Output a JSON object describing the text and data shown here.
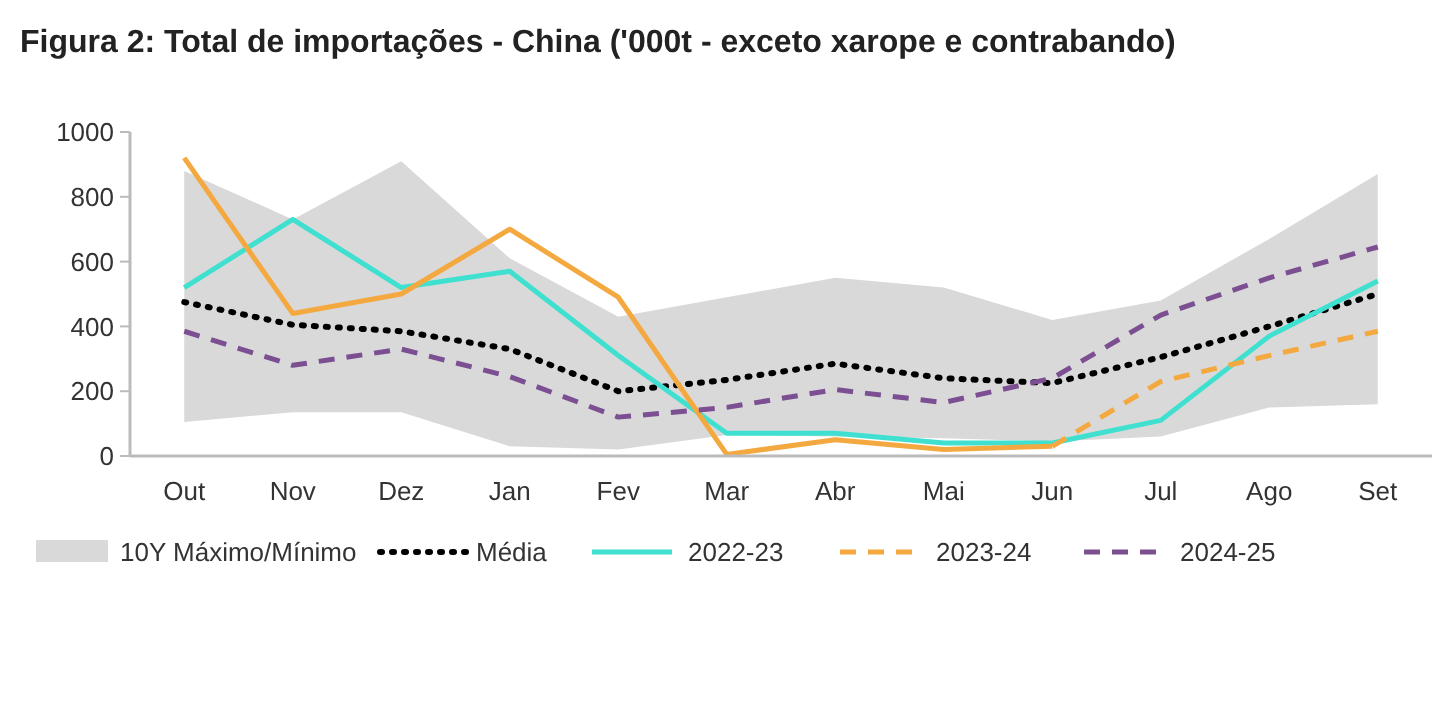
{
  "chart_data": {
    "type": "line",
    "title": "Figura 2: Total de importações - China ('000t - exceto xarope e contrabando)",
    "categories": [
      "Out",
      "Nov",
      "Dez",
      "Jan",
      "Fev",
      "Mar",
      "Abr",
      "Mai",
      "Jun",
      "Jul",
      "Ago",
      "Set"
    ],
    "series": [
      {
        "name": "10Y Máximo/Mínimo",
        "type": "area",
        "color": "#d9d9d9",
        "values": [
          null,
          null,
          null,
          null,
          null,
          null,
          null,
          null,
          null,
          null,
          null,
          null
        ],
        "upper": [
          880,
          730,
          910,
          610,
          430,
          490,
          550,
          520,
          420,
          480,
          670,
          870
        ],
        "lower": [
          105,
          135,
          135,
          30,
          20,
          65,
          60,
          55,
          45,
          60,
          150,
          160
        ]
      },
      {
        "name": "Média",
        "color": "#000000",
        "line_style": "dotted",
        "values": [
          475,
          405,
          385,
          330,
          200,
          235,
          285,
          240,
          225,
          305,
          400,
          500
        ]
      },
      {
        "name": "2022-23",
        "color": "#40e0d0",
        "line_style": "solid",
        "values": [
          520,
          730,
          520,
          570,
          310,
          70,
          70,
          40,
          40,
          110,
          370,
          540
        ]
      },
      {
        "color": "#f4a940",
        "line_style": "solid",
        "values": [
          920,
          440,
          500,
          700,
          490,
          5,
          50,
          20,
          30,
          null,
          null,
          null
        ]
      },
      {
        "name": "2023-24",
        "color": "#f4a940",
        "line_style": "dashed",
        "values": [
          null,
          null,
          null,
          null,
          null,
          null,
          null,
          null,
          30,
          230,
          310,
          385
        ]
      },
      {
        "name": "2024-25",
        "color": "#7b4f92",
        "line_style": "dashed",
        "values": [
          385,
          280,
          330,
          245,
          120,
          150,
          205,
          165,
          240,
          435,
          550,
          645
        ]
      }
    ],
    "ylim": [
      0,
      1000
    ],
    "yticks": [
      0,
      200,
      400,
      600,
      800,
      1000
    ],
    "grid": false,
    "legend": "bottom"
  }
}
